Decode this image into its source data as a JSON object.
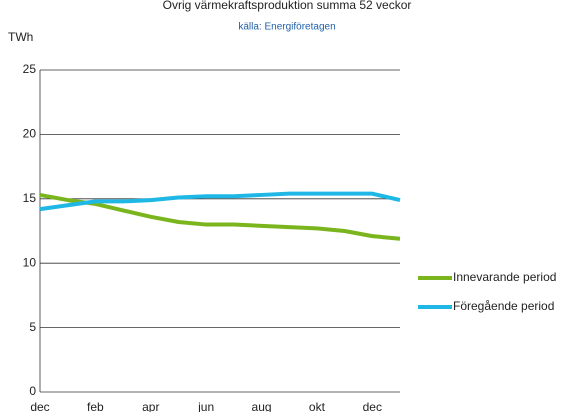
{
  "chart_data": {
    "type": "line",
    "title": "Övrig värmekraftsproduktion summa 52 veckor",
    "subtitle": "källa: Energiföretagen",
    "y_label": "TWh",
    "categories": [
      "dec",
      null,
      "feb",
      null,
      "apr",
      null,
      "jun",
      null,
      "aug",
      null,
      "okt",
      null,
      "dec",
      null
    ],
    "series": [
      {
        "name": "Innevarande period",
        "color": "#7ab51d",
        "values": [
          15.3,
          14.9,
          14.6,
          14.1,
          13.6,
          13.2,
          13.0,
          13.0,
          12.9,
          12.8,
          12.7,
          12.5,
          12.1,
          11.9
        ]
      },
      {
        "name": "Föregående period",
        "color": "#1fb8e6",
        "values": [
          14.2,
          14.5,
          14.8,
          14.8,
          14.9,
          15.1,
          15.2,
          15.2,
          15.3,
          15.4,
          15.4,
          15.4,
          15.4,
          14.9
        ]
      }
    ],
    "ylim": [
      0,
      25
    ],
    "yticks": [
      0,
      5,
      10,
      15,
      20,
      25
    ],
    "grid": true,
    "legend": "right"
  }
}
